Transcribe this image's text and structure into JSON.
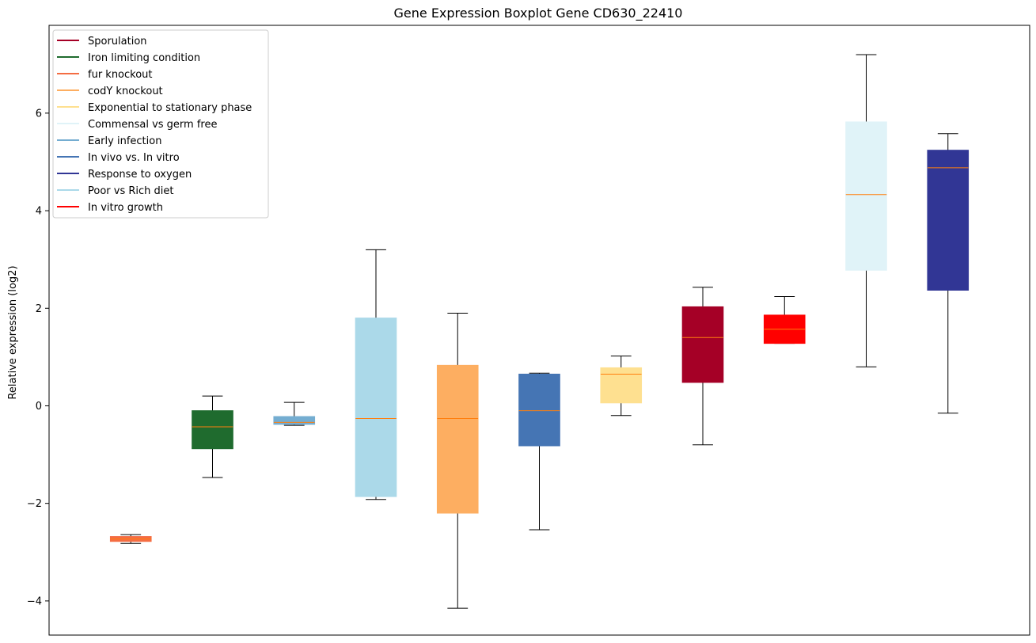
{
  "chart_data": {
    "type": "boxplot",
    "title": "Gene Expression Boxplot Gene CD630_22410",
    "xlabel": "",
    "ylabel": "Relative expression (log2)",
    "ylim": [
      -4.7,
      7.8
    ],
    "yticks": [
      -4,
      -2,
      0,
      2,
      4,
      6
    ],
    "ytick_labels": [
      "−4",
      "−2",
      "0",
      "2",
      "4",
      "6"
    ],
    "legend_position": "top-left",
    "legend": [
      {
        "label": "Sporulation",
        "color": "#a50026"
      },
      {
        "label": "Iron limiting condition",
        "color": "#1f6b2e"
      },
      {
        "label": "fur knockout",
        "color": "#f46d43"
      },
      {
        "label": "codY knockout",
        "color": "#fdae61"
      },
      {
        "label": "Exponential to stationary phase",
        "color": "#fee090"
      },
      {
        "label": "Commensal vs germ free",
        "color": "#e0f3f8"
      },
      {
        "label": "Early infection",
        "color": "#74add1"
      },
      {
        "label": "In vivo vs. In vitro",
        "color": "#4575b4"
      },
      {
        "label": "Response to oxygen",
        "color": "#313695"
      },
      {
        "label": "Poor vs Rich diet",
        "color": "#abd9e9"
      },
      {
        "label": "In vitro growth",
        "color": "#ff0000"
      }
    ],
    "boxes": [
      {
        "group": "fur knockout",
        "color": "#f46d43",
        "whisker_low": -2.82,
        "q1": -2.78,
        "median": -2.73,
        "q3": -2.68,
        "whisker_high": -2.64
      },
      {
        "group": "Iron limiting condition",
        "color": "#1f6b2e",
        "whisker_low": -1.47,
        "q1": -0.88,
        "median": -0.43,
        "q3": -0.1,
        "whisker_high": 0.2
      },
      {
        "group": "Early infection",
        "color": "#74add1",
        "whisker_low": -0.4,
        "q1": -0.38,
        "median": -0.34,
        "q3": -0.22,
        "whisker_high": 0.07
      },
      {
        "group": "Poor vs Rich diet",
        "color": "#abd9e9",
        "whisker_low": -1.92,
        "q1": -1.86,
        "median": -0.26,
        "q3": 1.8,
        "whisker_high": 3.2
      },
      {
        "group": "codY knockout",
        "color": "#fdae61",
        "whisker_low": -4.15,
        "q1": -2.2,
        "median": -0.26,
        "q3": 0.83,
        "whisker_high": 1.9
      },
      {
        "group": "In vivo vs. In vitro",
        "color": "#4575b4",
        "whisker_low": -2.54,
        "q1": -0.82,
        "median": -0.1,
        "q3": 0.65,
        "whisker_high": 0.67
      },
      {
        "group": "Exponential to stationary phase",
        "color": "#fee090",
        "whisker_low": -0.2,
        "q1": 0.06,
        "median": 0.65,
        "q3": 0.78,
        "whisker_high": 1.02
      },
      {
        "group": "Sporulation",
        "color": "#a50026",
        "whisker_low": -0.8,
        "q1": 0.48,
        "median": 1.4,
        "q3": 2.03,
        "whisker_high": 2.43
      },
      {
        "group": "In vitro growth",
        "color": "#ff0000",
        "whisker_low": 1.28,
        "q1": 1.28,
        "median": 1.57,
        "q3": 1.86,
        "whisker_high": 2.24
      },
      {
        "group": "Commensal vs germ free",
        "color": "#e0f3f8",
        "whisker_low": 0.8,
        "q1": 2.78,
        "median": 4.33,
        "q3": 5.82,
        "whisker_high": 7.2
      },
      {
        "group": "Response to oxygen",
        "color": "#313695",
        "whisker_low": -0.15,
        "q1": 2.37,
        "median": 4.88,
        "q3": 5.24,
        "whisker_high": 5.58
      }
    ],
    "median_color": "#ff7f0e"
  }
}
